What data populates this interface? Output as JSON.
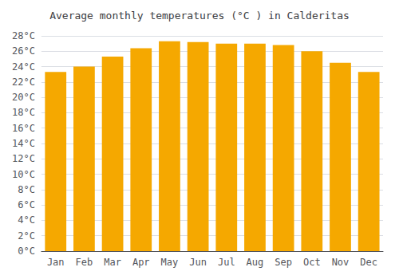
{
  "chart_data": {
    "type": "bar",
    "title": "Average monthly temperatures (°C ) in Calderitas",
    "categories": [
      "Jan",
      "Feb",
      "Mar",
      "Apr",
      "May",
      "Jun",
      "Jul",
      "Aug",
      "Sep",
      "Oct",
      "Nov",
      "Dec"
    ],
    "values": [
      23.3,
      24.0,
      25.3,
      26.4,
      27.3,
      27.2,
      27.0,
      27.0,
      26.8,
      26.0,
      24.5,
      23.3
    ],
    "color": "#F5A800",
    "ylim": [
      0,
      28
    ],
    "yticks": [
      {
        "value": 0,
        "label": "0°C"
      },
      {
        "value": 2,
        "label": "2°C"
      },
      {
        "value": 4,
        "label": "4°C"
      },
      {
        "value": 6,
        "label": "6°C"
      },
      {
        "value": 8,
        "label": "8°C"
      },
      {
        "value": 10,
        "label": "10°C"
      },
      {
        "value": 12,
        "label": "12°C"
      },
      {
        "value": 14,
        "label": "14°C"
      },
      {
        "value": 16,
        "label": "16°C"
      },
      {
        "value": 18,
        "label": "18°C"
      },
      {
        "value": 20,
        "label": "20°C"
      },
      {
        "value": 22,
        "label": "22°C"
      },
      {
        "value": 24,
        "label": "24°C"
      },
      {
        "value": 26,
        "label": "26°C"
      },
      {
        "value": 28,
        "label": "28°C"
      }
    ],
    "grid": true
  }
}
